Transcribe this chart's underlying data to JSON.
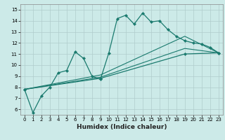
{
  "title": "",
  "xlabel": "Humidex (Indice chaleur)",
  "bg_color": "#cceae8",
  "grid_color": "#b0cccc",
  "line_color": "#1a7a6e",
  "xlim": [
    -0.5,
    23.5
  ],
  "ylim": [
    5.5,
    15.5
  ],
  "xticks": [
    0,
    1,
    2,
    3,
    4,
    5,
    6,
    7,
    8,
    9,
    10,
    11,
    12,
    13,
    14,
    15,
    16,
    17,
    18,
    19,
    20,
    21,
    22,
    23
  ],
  "yticks": [
    6,
    7,
    8,
    9,
    10,
    11,
    12,
    13,
    14,
    15
  ],
  "line1_x": [
    0,
    1,
    2,
    3,
    4,
    5,
    6,
    7,
    8,
    9,
    10,
    11,
    12,
    13,
    14,
    15,
    16,
    17,
    18,
    19,
    20,
    21,
    22,
    23
  ],
  "line1_y": [
    7.8,
    5.7,
    7.2,
    8.0,
    9.3,
    9.5,
    11.2,
    10.6,
    9.0,
    8.7,
    11.1,
    14.2,
    14.5,
    13.7,
    14.7,
    13.9,
    14.0,
    13.2,
    12.6,
    12.2,
    12.0,
    11.9,
    11.6,
    11.1
  ],
  "line2_x": [
    0,
    9,
    19,
    23
  ],
  "line2_y": [
    7.8,
    8.8,
    11.0,
    11.1
  ],
  "line3_x": [
    0,
    9,
    19,
    23
  ],
  "line3_y": [
    7.8,
    8.9,
    11.5,
    11.1
  ],
  "line4_x": [
    0,
    9,
    19,
    23
  ],
  "line4_y": [
    7.8,
    9.1,
    12.6,
    11.1
  ]
}
